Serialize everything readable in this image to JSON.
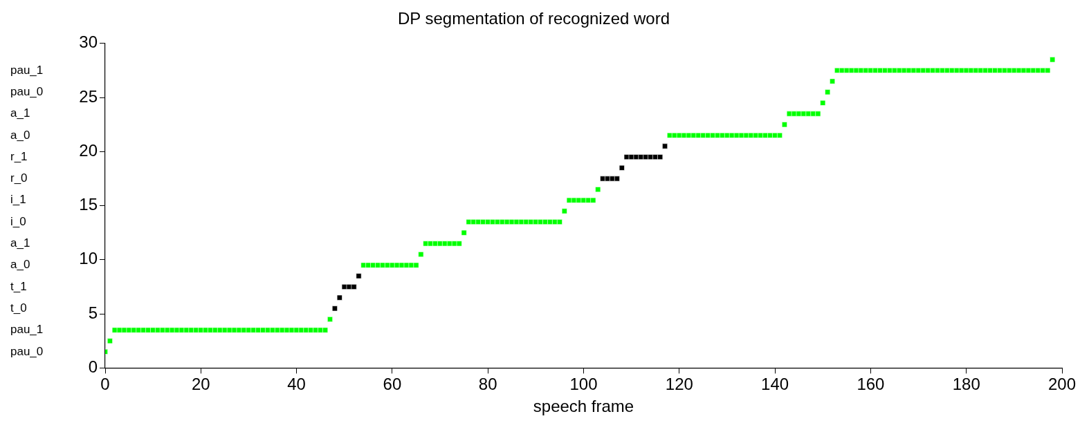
{
  "chart_data": {
    "type": "scatter",
    "title": "DP segmentation of recognized word",
    "xlabel": "speech frame",
    "marker": "square",
    "legend": false,
    "xlim": [
      0,
      200
    ],
    "xticks": [
      0,
      20,
      40,
      60,
      80,
      100,
      120,
      140,
      160,
      180,
      200
    ],
    "ylim": [
      0,
      30
    ],
    "yticks": [
      0,
      5,
      10,
      15,
      20,
      25,
      30
    ],
    "annotations": [
      "pau_0",
      "pau_1",
      "t_0",
      "t_1",
      "a_0",
      "a_1",
      "i_0",
      "i_1",
      "r_0",
      "r_1",
      "a_0",
      "a_1",
      "pau_0",
      "pau_1"
    ],
    "series": [
      {
        "color": "#00ff00",
        "x": [
          0,
          1,
          2,
          3,
          4,
          5,
          6,
          7,
          8,
          9,
          10,
          11,
          12,
          13,
          14,
          15,
          16,
          17,
          18,
          19,
          20,
          21,
          22,
          23,
          24,
          25,
          26,
          27,
          28,
          29,
          30,
          31,
          32,
          33,
          34,
          35,
          36,
          37,
          38,
          39,
          40,
          41,
          42,
          43,
          44,
          45,
          46,
          47,
          54,
          55,
          56,
          57,
          58,
          59,
          60,
          61,
          62,
          63,
          64,
          65,
          66,
          67,
          68,
          69,
          70,
          71,
          72,
          73,
          74,
          75,
          76,
          77,
          78,
          79,
          80,
          81,
          82,
          83,
          84,
          85,
          86,
          87,
          88,
          89,
          90,
          91,
          92,
          93,
          94,
          95,
          96,
          97,
          98,
          99,
          100,
          101,
          102,
          103,
          118,
          119,
          120,
          121,
          122,
          123,
          124,
          125,
          126,
          127,
          128,
          129,
          130,
          131,
          132,
          133,
          134,
          135,
          136,
          137,
          138,
          139,
          140,
          141,
          142,
          143,
          144,
          145,
          146,
          147,
          148,
          149,
          150,
          151,
          152,
          153,
          154,
          155,
          156,
          157,
          158,
          159,
          160,
          161,
          162,
          163,
          164,
          165,
          166,
          167,
          168,
          169,
          170,
          171,
          172,
          173,
          174,
          175,
          176,
          177,
          178,
          179,
          180,
          181,
          182,
          183,
          184,
          185,
          186,
          187,
          188,
          189,
          190,
          191,
          192,
          193,
          194,
          195,
          196,
          197,
          198
        ],
        "values": [
          1.5,
          2.5,
          3.5,
          3.5,
          3.5,
          3.5,
          3.5,
          3.5,
          3.5,
          3.5,
          3.5,
          3.5,
          3.5,
          3.5,
          3.5,
          3.5,
          3.5,
          3.5,
          3.5,
          3.5,
          3.5,
          3.5,
          3.5,
          3.5,
          3.5,
          3.5,
          3.5,
          3.5,
          3.5,
          3.5,
          3.5,
          3.5,
          3.5,
          3.5,
          3.5,
          3.5,
          3.5,
          3.5,
          3.5,
          3.5,
          3.5,
          3.5,
          3.5,
          3.5,
          3.5,
          3.5,
          3.5,
          4.5,
          9.5,
          9.5,
          9.5,
          9.5,
          9.5,
          9.5,
          9.5,
          9.5,
          9.5,
          9.5,
          9.5,
          9.5,
          10.5,
          11.5,
          11.5,
          11.5,
          11.5,
          11.5,
          11.5,
          11.5,
          11.5,
          12.5,
          13.5,
          13.5,
          13.5,
          13.5,
          13.5,
          13.5,
          13.5,
          13.5,
          13.5,
          13.5,
          13.5,
          13.5,
          13.5,
          13.5,
          13.5,
          13.5,
          13.5,
          13.5,
          13.5,
          13.5,
          14.5,
          15.5,
          15.5,
          15.5,
          15.5,
          15.5,
          15.5,
          16.5,
          21.5,
          21.5,
          21.5,
          21.5,
          21.5,
          21.5,
          21.5,
          21.5,
          21.5,
          21.5,
          21.5,
          21.5,
          21.5,
          21.5,
          21.5,
          21.5,
          21.5,
          21.5,
          21.5,
          21.5,
          21.5,
          21.5,
          21.5,
          21.5,
          22.5,
          23.5,
          23.5,
          23.5,
          23.5,
          23.5,
          23.5,
          23.5,
          24.5,
          25.5,
          26.5,
          27.5,
          27.5,
          27.5,
          27.5,
          27.5,
          27.5,
          27.5,
          27.5,
          27.5,
          27.5,
          27.5,
          27.5,
          27.5,
          27.5,
          27.5,
          27.5,
          27.5,
          27.5,
          27.5,
          27.5,
          27.5,
          27.5,
          27.5,
          27.5,
          27.5,
          27.5,
          27.5,
          27.5,
          27.5,
          27.5,
          27.5,
          27.5,
          27.5,
          27.5,
          27.5,
          27.5,
          27.5,
          27.5,
          27.5,
          27.5,
          27.5,
          27.5,
          27.5,
          27.5,
          27.5,
          28.5
        ]
      },
      {
        "color": "#000000",
        "x": [
          48,
          49,
          50,
          51,
          52,
          53,
          104,
          105,
          106,
          107,
          108,
          109,
          110,
          111,
          112,
          113,
          114,
          115,
          116,
          117
        ],
        "values": [
          5.5,
          6.5,
          7.5,
          7.5,
          7.5,
          8.5,
          17.5,
          17.5,
          17.5,
          17.5,
          18.5,
          19.5,
          19.5,
          19.5,
          19.5,
          19.5,
          19.5,
          19.5,
          19.5,
          20.5
        ]
      }
    ]
  }
}
